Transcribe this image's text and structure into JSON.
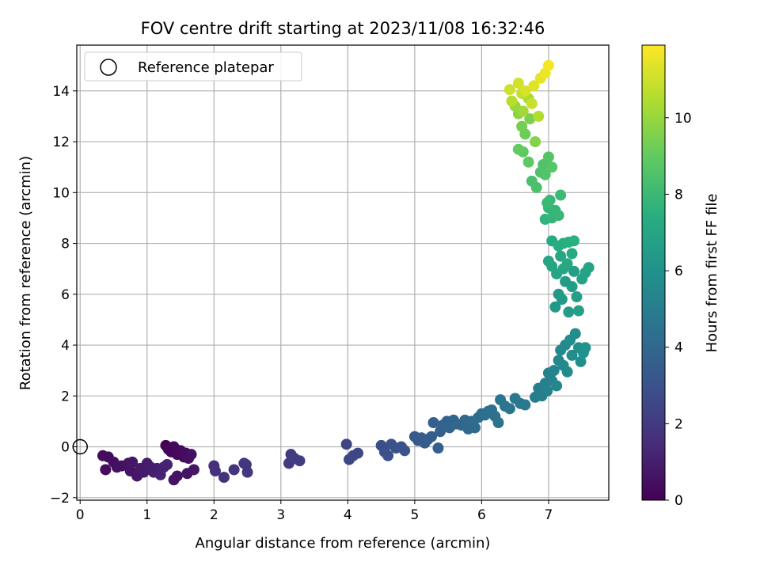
{
  "chart_data": {
    "type": "scatter",
    "title": "FOV centre drift starting at 2023/11/08 16:32:46",
    "xlabel": "Angular distance from reference (arcmin)",
    "ylabel": "Rotation from reference (arcmin)",
    "xlim": [
      -0.05,
      7.9
    ],
    "ylim": [
      -2.1,
      15.8
    ],
    "xticks": [
      0,
      1,
      2,
      3,
      4,
      5,
      6,
      7
    ],
    "yticks": [
      -2,
      0,
      2,
      4,
      6,
      8,
      10,
      12,
      14
    ],
    "grid": true,
    "legend": {
      "placement": "top-left",
      "entries": [
        "Reference platepar"
      ]
    },
    "reference_point": {
      "x": 0,
      "y": 0
    },
    "colorbar": {
      "label": "Hours from first FF file",
      "colormap": "viridis",
      "range": [
        0,
        11.9
      ],
      "ticks": [
        0,
        2,
        4,
        6,
        8,
        10
      ]
    },
    "series": [
      {
        "points": [
          [
            0.34,
            -0.35,
            0.3
          ],
          [
            0.42,
            -0.4,
            0.35
          ],
          [
            0.38,
            -0.9,
            0.4
          ],
          [
            0.5,
            -0.6,
            0.45
          ],
          [
            0.55,
            -0.8,
            0.5
          ],
          [
            0.62,
            -0.75,
            0.55
          ],
          [
            0.72,
            -0.65,
            0.6
          ],
          [
            0.75,
            -0.95,
            0.65
          ],
          [
            0.78,
            -0.6,
            0.7
          ],
          [
            0.85,
            -1.15,
            0.75
          ],
          [
            0.9,
            -0.85,
            0.8
          ],
          [
            0.95,
            -1.0,
            0.85
          ],
          [
            1.0,
            -0.65,
            0.9
          ],
          [
            1.05,
            -0.8,
            0.95
          ],
          [
            1.1,
            -1.0,
            1.0
          ],
          [
            1.15,
            -0.85,
            1.05
          ],
          [
            1.2,
            -1.1,
            1.1
          ],
          [
            1.25,
            -0.8,
            1.15
          ],
          [
            1.3,
            -0.7,
            1.2
          ],
          [
            1.28,
            0.05,
            0.05
          ],
          [
            1.32,
            -0.1,
            0.1
          ],
          [
            1.36,
            -0.2,
            0.15
          ],
          [
            1.4,
            0.0,
            0.2
          ],
          [
            1.45,
            -0.3,
            0.25
          ],
          [
            1.5,
            -0.15,
            0.3
          ],
          [
            1.55,
            -0.4,
            0.35
          ],
          [
            1.58,
            -0.25,
            0.4
          ],
          [
            1.62,
            -0.45,
            0.45
          ],
          [
            1.66,
            -0.3,
            0.5
          ],
          [
            1.4,
            -1.3,
            0.6
          ],
          [
            1.45,
            -1.15,
            0.6
          ],
          [
            1.6,
            -1.05,
            0.65
          ],
          [
            1.7,
            -0.9,
            0.7
          ],
          [
            2.0,
            -0.75,
            1.6
          ],
          [
            2.02,
            -0.95,
            1.65
          ],
          [
            2.15,
            -1.2,
            1.7
          ],
          [
            2.3,
            -0.9,
            1.75
          ],
          [
            2.45,
            -0.65,
            1.8
          ],
          [
            2.48,
            -0.7,
            1.85
          ],
          [
            2.5,
            -1.0,
            1.9
          ],
          [
            3.12,
            -0.65,
            2.0
          ],
          [
            3.15,
            -0.3,
            2.05
          ],
          [
            3.2,
            -0.45,
            2.1
          ],
          [
            3.28,
            -0.55,
            2.15
          ],
          [
            3.98,
            0.1,
            2.4
          ],
          [
            4.02,
            -0.5,
            2.45
          ],
          [
            4.08,
            -0.35,
            2.5
          ],
          [
            4.15,
            -0.25,
            2.55
          ],
          [
            4.5,
            0.05,
            2.8
          ],
          [
            4.55,
            -0.2,
            2.85
          ],
          [
            4.6,
            -0.35,
            2.9
          ],
          [
            4.65,
            0.1,
            2.95
          ],
          [
            4.72,
            -0.05,
            3.0
          ],
          [
            4.8,
            0.0,
            3.05
          ],
          [
            4.85,
            -0.15,
            3.1
          ],
          [
            5.0,
            0.4,
            3.3
          ],
          [
            5.05,
            0.25,
            3.35
          ],
          [
            5.1,
            0.35,
            3.4
          ],
          [
            5.15,
            0.15,
            3.45
          ],
          [
            5.2,
            0.3,
            3.5
          ],
          [
            5.25,
            0.4,
            3.55
          ],
          [
            5.28,
            0.95,
            3.6
          ],
          [
            5.35,
            -0.05,
            3.6
          ],
          [
            5.38,
            0.6,
            3.65
          ],
          [
            5.42,
            0.85,
            3.7
          ],
          [
            5.48,
            1.0,
            3.75
          ],
          [
            5.52,
            0.75,
            3.8
          ],
          [
            5.58,
            1.05,
            3.85
          ],
          [
            5.62,
            0.9,
            3.9
          ],
          [
            5.7,
            0.85,
            3.95
          ],
          [
            5.75,
            1.05,
            4.0
          ],
          [
            5.8,
            0.7,
            4.05
          ],
          [
            5.85,
            1.0,
            4.1
          ],
          [
            5.9,
            0.75,
            4.15
          ],
          [
            5.95,
            1.15,
            4.2
          ],
          [
            6.0,
            1.3,
            4.25
          ],
          [
            6.05,
            1.25,
            4.3
          ],
          [
            6.1,
            1.4,
            4.35
          ],
          [
            6.15,
            1.45,
            4.4
          ],
          [
            6.2,
            1.2,
            4.45
          ],
          [
            6.25,
            0.95,
            4.5
          ],
          [
            6.28,
            1.85,
            4.55
          ],
          [
            6.35,
            1.6,
            4.6
          ],
          [
            6.42,
            1.5,
            4.65
          ],
          [
            6.5,
            1.9,
            4.7
          ],
          [
            6.58,
            1.7,
            4.75
          ],
          [
            6.65,
            1.65,
            4.8
          ],
          [
            6.8,
            1.95,
            5.0
          ],
          [
            6.85,
            2.3,
            5.05
          ],
          [
            6.9,
            2.0,
            5.1
          ],
          [
            6.95,
            2.5,
            5.15
          ],
          [
            7.0,
            2.9,
            5.2
          ],
          [
            6.98,
            2.2,
            5.25
          ],
          [
            7.05,
            2.6,
            5.3
          ],
          [
            7.08,
            3.0,
            5.35
          ],
          [
            7.12,
            2.4,
            5.4
          ],
          [
            7.15,
            3.4,
            5.45
          ],
          [
            7.18,
            3.8,
            5.5
          ],
          [
            7.22,
            3.2,
            5.55
          ],
          [
            7.25,
            4.0,
            5.6
          ],
          [
            7.28,
            2.95,
            5.65
          ],
          [
            7.32,
            4.2,
            5.7
          ],
          [
            7.35,
            3.6,
            5.75
          ],
          [
            7.4,
            4.45,
            5.8
          ],
          [
            7.45,
            3.9,
            5.85
          ],
          [
            7.48,
            3.35,
            5.9
          ],
          [
            7.52,
            3.7,
            5.95
          ],
          [
            7.55,
            3.9,
            6.0
          ],
          [
            7.1,
            5.5,
            6.3
          ],
          [
            7.15,
            6.0,
            6.35
          ],
          [
            7.2,
            5.8,
            6.4
          ],
          [
            7.25,
            6.5,
            6.45
          ],
          [
            7.3,
            5.3,
            6.5
          ],
          [
            7.35,
            6.3,
            6.55
          ],
          [
            7.38,
            6.9,
            6.6
          ],
          [
            7.42,
            5.9,
            6.65
          ],
          [
            7.45,
            5.35,
            6.7
          ],
          [
            7.5,
            6.6,
            6.75
          ],
          [
            7.55,
            6.85,
            6.8
          ],
          [
            7.6,
            7.05,
            6.85
          ],
          [
            7.05,
            7.1,
            6.9
          ],
          [
            7.0,
            7.3,
            6.95
          ],
          [
            7.12,
            6.8,
            7.0
          ],
          [
            7.18,
            7.5,
            7.05
          ],
          [
            7.22,
            7.0,
            7.1
          ],
          [
            7.28,
            7.2,
            7.15
          ],
          [
            7.35,
            7.6,
            7.2
          ],
          [
            7.05,
            8.1,
            7.3
          ],
          [
            7.15,
            7.9,
            7.35
          ],
          [
            7.22,
            8.0,
            7.4
          ],
          [
            7.3,
            8.05,
            7.45
          ],
          [
            7.38,
            8.1,
            7.5
          ],
          [
            6.95,
            8.95,
            7.7
          ],
          [
            7.0,
            9.4,
            7.75
          ],
          [
            7.05,
            9.0,
            7.8
          ],
          [
            7.1,
            9.3,
            7.85
          ],
          [
            7.15,
            9.1,
            7.9
          ],
          [
            7.02,
            9.7,
            7.95
          ],
          [
            6.98,
            9.6,
            8.0
          ],
          [
            7.18,
            9.9,
            8.05
          ],
          [
            6.75,
            10.45,
            8.4
          ],
          [
            6.82,
            10.2,
            8.45
          ],
          [
            6.88,
            10.8,
            8.5
          ],
          [
            6.92,
            11.1,
            8.55
          ],
          [
            6.95,
            10.7,
            8.6
          ],
          [
            7.0,
            11.4,
            8.65
          ],
          [
            7.05,
            11.0,
            8.7
          ],
          [
            6.7,
            11.2,
            8.9
          ],
          [
            6.62,
            11.6,
            8.95
          ],
          [
            6.55,
            11.7,
            9.0
          ],
          [
            6.65,
            12.3,
            9.2
          ],
          [
            6.6,
            12.6,
            9.35
          ],
          [
            6.72,
            12.9,
            9.5
          ],
          [
            6.8,
            12.0,
            9.6
          ],
          [
            6.55,
            13.1,
            9.8
          ],
          [
            6.5,
            13.4,
            10.0
          ],
          [
            6.62,
            13.2,
            10.2
          ],
          [
            6.7,
            13.7,
            10.4
          ],
          [
            6.85,
            13.0,
            10.5
          ],
          [
            6.45,
            13.6,
            10.6
          ],
          [
            6.6,
            13.9,
            10.8
          ],
          [
            6.75,
            13.5,
            10.9
          ],
          [
            6.42,
            14.05,
            11.0
          ],
          [
            6.55,
            14.3,
            11.1
          ],
          [
            6.65,
            14.0,
            11.2
          ],
          [
            6.78,
            14.2,
            11.3
          ],
          [
            6.88,
            14.5,
            11.5
          ],
          [
            6.95,
            14.7,
            11.6
          ],
          [
            7.0,
            15.0,
            11.7
          ]
        ]
      }
    ]
  }
}
